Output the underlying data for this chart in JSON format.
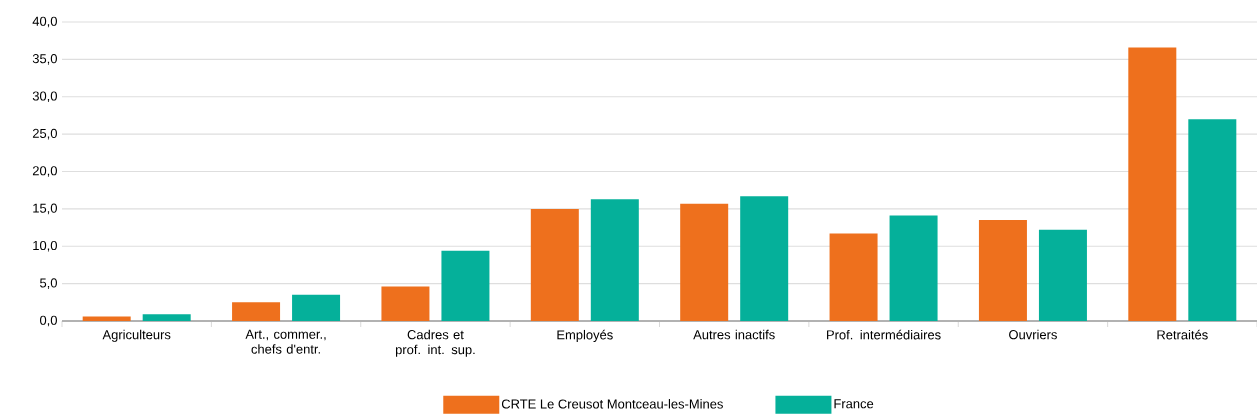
{
  "chart_data": {
    "type": "bar",
    "categories": [
      "Agriculteurs",
      "Art., commer., chefs d'entr.",
      "Cadres et prof. int. sup.",
      "Employés",
      "Autres inactifs",
      "Prof. intermédiaires",
      "Ouvriers",
      "Retraités"
    ],
    "series": [
      {
        "name": "CRTE Le Creusot Montceau-les-Mines",
        "color": "#ee701d",
        "values": [
          0.6,
          2.5,
          4.6,
          15.0,
          15.7,
          11.7,
          13.5,
          36.6
        ]
      },
      {
        "name": "France",
        "color": "#05b09a",
        "values": [
          0.9,
          3.5,
          9.4,
          16.3,
          16.7,
          14.1,
          12.2,
          27.0
        ]
      }
    ],
    "ylim": [
      0,
      40
    ],
    "yticks": [
      {
        "value": 0,
        "label": "0,0"
      },
      {
        "value": 5,
        "label": "5,0"
      },
      {
        "value": 10,
        "label": "10,0"
      },
      {
        "value": 15,
        "label": "15,0"
      },
      {
        "value": 20,
        "label": "20,0"
      },
      {
        "value": 25,
        "label": "25,0"
      },
      {
        "value": 30,
        "label": "30,0"
      },
      {
        "value": 35,
        "label": "35,0"
      },
      {
        "value": 40,
        "label": "40,0"
      }
    ],
    "grid": "y",
    "legend": "bottom"
  }
}
